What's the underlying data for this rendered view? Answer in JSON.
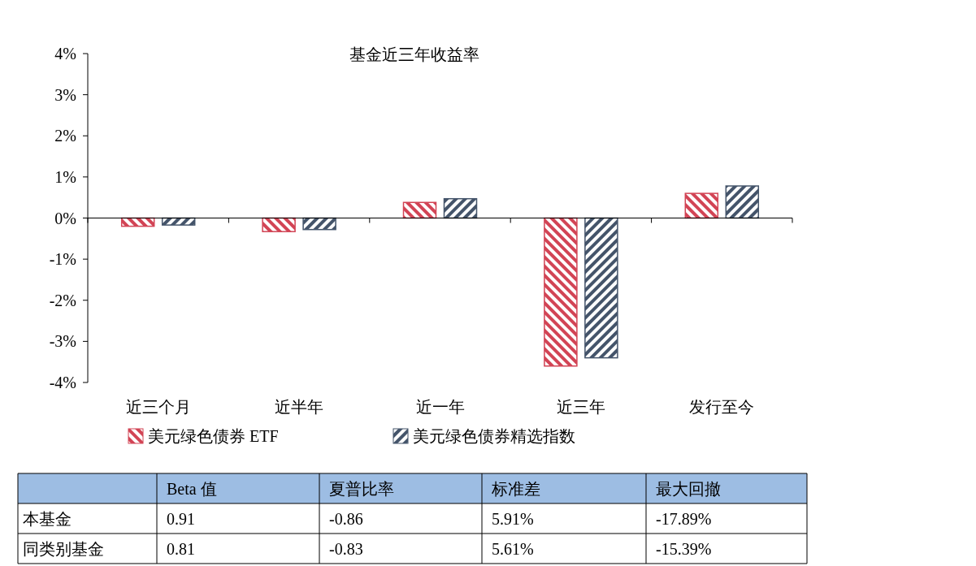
{
  "chart_data": [
    {
      "type": "bar",
      "title": "基金近三年收益率",
      "categories": [
        "近三个月",
        "近半年",
        "近一年",
        "近三年",
        "发行至今"
      ],
      "series": [
        {
          "name": "美元绿色债券 ETF",
          "color": "#d24455",
          "values": [
            -0.2,
            -0.33,
            0.38,
            -3.6,
            0.6
          ]
        },
        {
          "name": "美元绿色债券精选指数",
          "color": "#44546a",
          "values": [
            -0.17,
            -0.28,
            0.47,
            -3.4,
            0.78
          ]
        }
      ],
      "ylim": [
        -4,
        4
      ],
      "yticks": [
        {
          "value": -4,
          "label": "-4%"
        },
        {
          "value": -3,
          "label": "-3%"
        },
        {
          "value": -2,
          "label": "-2%"
        },
        {
          "value": -1,
          "label": "-1%"
        },
        {
          "value": 0,
          "label": "0%"
        },
        {
          "value": 1,
          "label": "1%"
        },
        {
          "value": 2,
          "label": "2%"
        },
        {
          "value": 3,
          "label": "3%"
        },
        {
          "value": 4,
          "label": "4%"
        }
      ],
      "legend": "bottom"
    },
    {
      "type": "other",
      "categories": [
        "Beta 值",
        "夏普比率",
        "标准差",
        "最大回撤"
      ],
      "y_categories": [
        "本基金",
        "同类别基金"
      ],
      "cell_labels": [
        [
          "0.91",
          "-0.86",
          "5.91%",
          "-17.89%"
        ],
        [
          "0.81",
          "-0.83",
          "5.61%",
          "-15.39%"
        ]
      ]
    }
  ]
}
